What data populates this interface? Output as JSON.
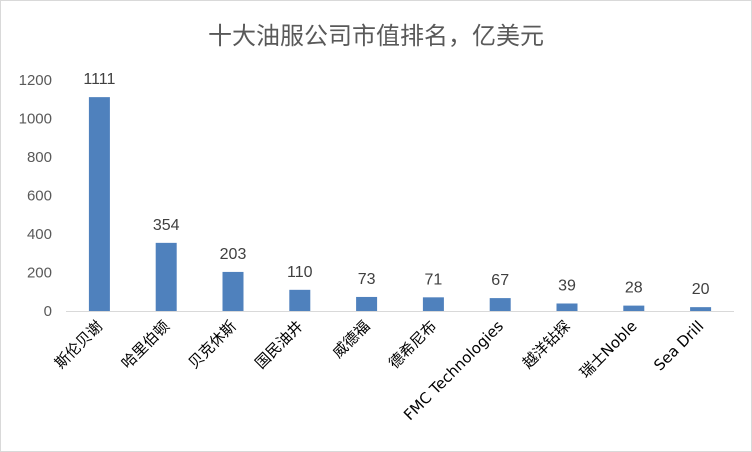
{
  "chart_data": {
    "type": "bar",
    "title": "十大油服公司市值排名，亿美元",
    "categories": [
      "斯伦贝谢",
      "哈里伯顿",
      "贝克休斯",
      "国民油井",
      "威德福",
      "德希尼布",
      "FMC Technologies",
      "越洋钻探",
      "瑞士Noble",
      "Sea Drill"
    ],
    "values": [
      1111,
      354,
      203,
      110,
      73,
      71,
      67,
      39,
      28,
      20
    ],
    "ylim": [
      0,
      1200
    ],
    "yticks": [
      0,
      200,
      400,
      600,
      800,
      1000,
      1200
    ],
    "grid": false,
    "legend": "none",
    "bar_color": "#4f81bd",
    "xlabel": "",
    "ylabel": ""
  }
}
